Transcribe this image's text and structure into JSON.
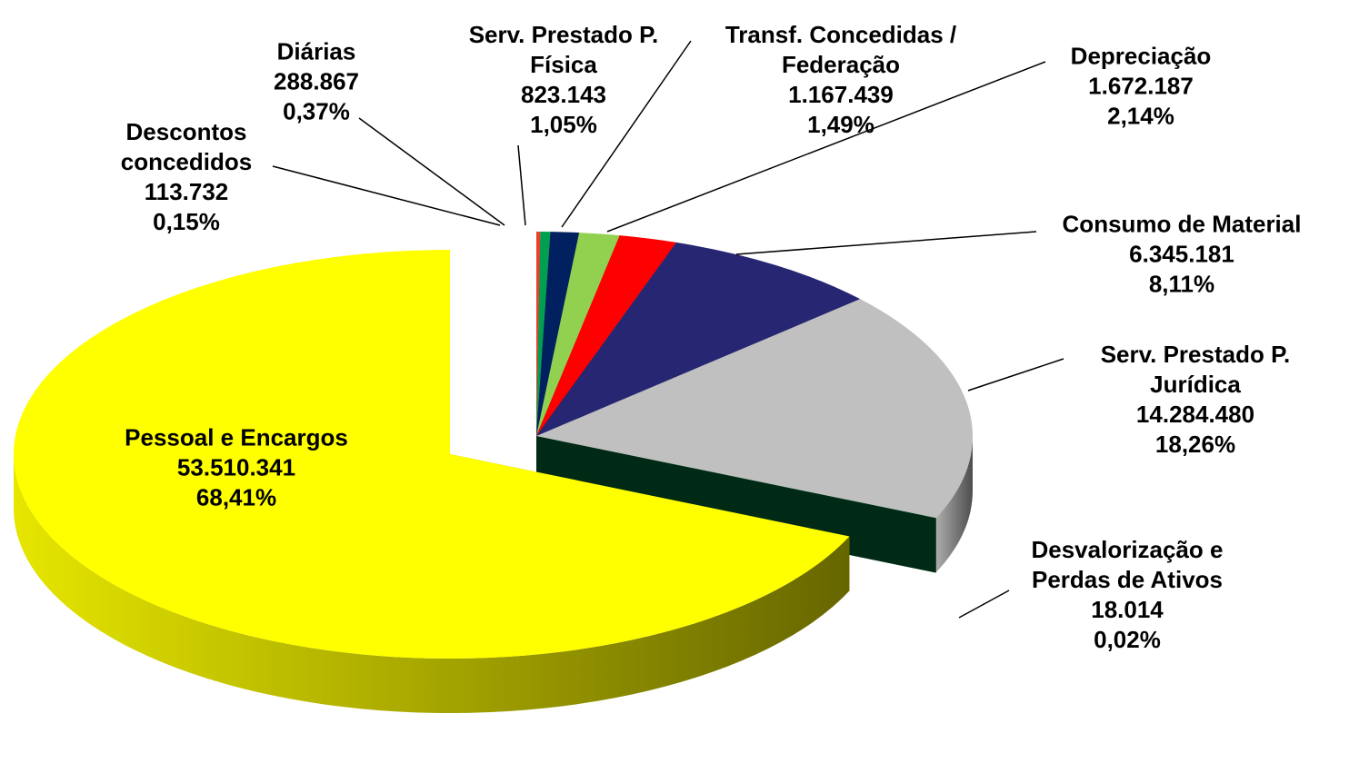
{
  "chart_data": {
    "type": "pie",
    "categories": [
      "Descontos concedidos",
      "Diárias",
      "Serv. Prestado P. Física",
      "Transf. Concedidas / Federação",
      "Depreciação",
      "Consumo de Material",
      "Serv. Prestado P. Jurídica",
      "Desvalorização e Perdas de Ativos",
      "Pessoal e Encargos"
    ],
    "values": [
      113732,
      288867,
      823143,
      1167439,
      1672187,
      6345181,
      14284480,
      18014,
      53510341
    ],
    "value_labels": [
      "113.732",
      "288.867",
      "823.143",
      "1.167.439",
      "1.672.187",
      "6.345.181",
      "14.284.480",
      "18.014",
      "53.510.341"
    ],
    "percents": [
      0.15,
      0.37,
      1.05,
      1.49,
      2.14,
      8.11,
      18.26,
      0.02,
      68.41
    ],
    "percent_labels": [
      "0,15%",
      "0,37%",
      "1,05%",
      "1,49%",
      "2,14%",
      "8,11%",
      "18,26%",
      "0,02%",
      "68,41%"
    ],
    "colors": [
      "#e8402a",
      "#00a050",
      "#002060",
      "#92d050",
      "#ff0000",
      "#262673",
      "#c0c0c0",
      "#004d26",
      "#ffff00"
    ]
  }
}
